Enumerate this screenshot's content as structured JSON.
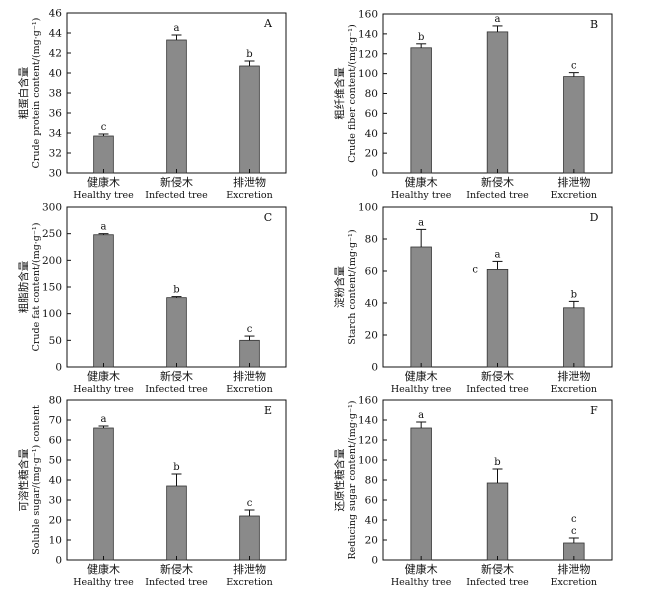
{
  "chart_data": [
    {
      "type": "bar",
      "panel_label": "A",
      "categories": [
        {
          "cn": "健康木",
          "en": "Healthy tree"
        },
        {
          "cn": "新侵木",
          "en": "Infected tree"
        },
        {
          "cn": "排泄物",
          "en": "Excretion"
        }
      ],
      "values": [
        33.7,
        43.3,
        40.7
      ],
      "errors": [
        0.2,
        0.5,
        0.5
      ],
      "significance": [
        "c",
        "a",
        "b"
      ],
      "ylabel_cn": "粗蛋白含量",
      "ylabel_en": "Crude protein content/(mg·g⁻¹)",
      "ylim": [
        30,
        46
      ],
      "yticks": [
        30,
        32,
        34,
        36,
        38,
        40,
        42,
        44,
        46
      ]
    },
    {
      "type": "bar",
      "panel_label": "B",
      "categories": [
        {
          "cn": "健康木",
          "en": "Healthy tree"
        },
        {
          "cn": "新侵木",
          "en": "Infected tree"
        },
        {
          "cn": "排泄物",
          "en": "Excretion"
        }
      ],
      "values": [
        126,
        142,
        97
      ],
      "errors": [
        4,
        6,
        4
      ],
      "significance": [
        "b",
        "a",
        "c"
      ],
      "ylabel_cn": "粗纤维含量",
      "ylabel_en": "Crude fiber content/(mg·g⁻¹)",
      "ylim": [
        0,
        160
      ],
      "yticks": [
        0,
        20,
        40,
        60,
        80,
        100,
        120,
        140,
        160
      ]
    },
    {
      "type": "bar",
      "panel_label": "C",
      "categories": [
        {
          "cn": "健康木",
          "en": "Healthy tree"
        },
        {
          "cn": "新侵木",
          "en": "Infected tree"
        },
        {
          "cn": "排泄物",
          "en": "Excretion"
        }
      ],
      "values": [
        248,
        130,
        50
      ],
      "errors": [
        2,
        2,
        8
      ],
      "significance": [
        "a",
        "b",
        "c"
      ],
      "ylabel_cn": "粗脂肪含量",
      "ylabel_en": "Crude fat content/(mg·g⁻¹)",
      "ylim": [
        0,
        300
      ],
      "yticks": [
        0,
        50,
        100,
        150,
        200,
        250,
        300
      ]
    },
    {
      "type": "bar",
      "panel_label": "D",
      "categories": [
        {
          "cn": "健康木",
          "en": "Healthy tree"
        },
        {
          "cn": "新侵木",
          "en": "Infected tree"
        },
        {
          "cn": "排泄物",
          "en": "Excretion"
        }
      ],
      "values": [
        75,
        61,
        37
      ],
      "errors": [
        11,
        5,
        4
      ],
      "significance": [
        "a",
        "a",
        "b"
      ],
      "extra_letter": "c",
      "ylabel_cn": "淀粉含量",
      "ylabel_en": "Starch content/(mg·g⁻¹)",
      "ylim": [
        0,
        100
      ],
      "yticks": [
        0,
        20,
        40,
        60,
        80,
        100
      ]
    },
    {
      "type": "bar",
      "panel_label": "E",
      "categories": [
        {
          "cn": "健康木",
          "en": "Healthy tree"
        },
        {
          "cn": "新侵木",
          "en": "Infected tree"
        },
        {
          "cn": "排泄物",
          "en": "Excretion"
        }
      ],
      "values": [
        66,
        37,
        22
      ],
      "errors": [
        1,
        6,
        3
      ],
      "significance": [
        "a",
        "b",
        "c"
      ],
      "ylabel_cn": "可溶性糖含量",
      "ylabel_en": "Soluble sugar/(mg·g⁻¹) content",
      "ylim": [
        0,
        80
      ],
      "yticks": [
        0,
        10,
        20,
        30,
        40,
        50,
        60,
        70,
        80
      ]
    },
    {
      "type": "bar",
      "panel_label": "F",
      "categories": [
        {
          "cn": "健康木",
          "en": "Healthy tree"
        },
        {
          "cn": "新侵木",
          "en": "Infected tree"
        },
        {
          "cn": "排泄物",
          "en": "Excretion"
        }
      ],
      "values": [
        132,
        77,
        17
      ],
      "errors": [
        6,
        14,
        5
      ],
      "significance": [
        "a",
        "b",
        "c"
      ],
      "extra_letter": "c",
      "ylabel_cn": "还原性糖含量",
      "ylabel_en": "Reducing sugar content/(mg·g⁻¹)",
      "ylim": [
        0,
        160
      ],
      "yticks": [
        0,
        20,
        40,
        60,
        80,
        100,
        120,
        140,
        160
      ]
    }
  ],
  "colors": {
    "bar_fill": "#8a8a8a",
    "bar_stroke": "#333333",
    "axis": "#111111"
  }
}
